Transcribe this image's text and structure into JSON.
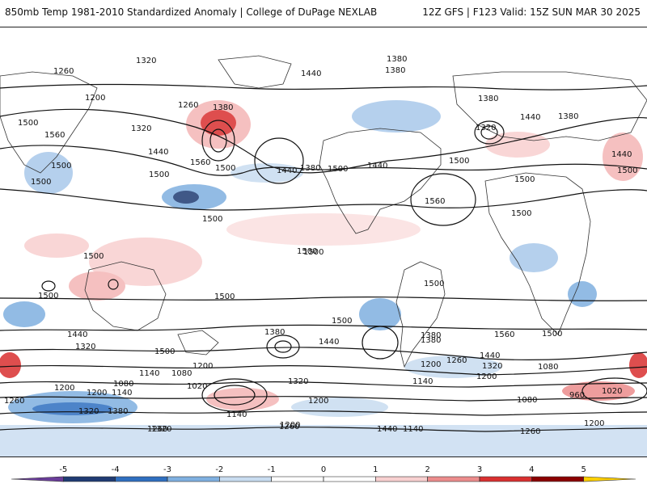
{
  "header": {
    "title": "850mb Temp 1981-2010 Standardized Anomaly | College of DuPage NEXLAB",
    "run_info": "12Z GFS | F123 Valid: 15Z SUN MAR 30 2025"
  },
  "map": {
    "contour_labels": [
      {
        "id": "c1",
        "text": "1320"
      },
      {
        "id": "c2",
        "text": "1380"
      },
      {
        "id": "c3",
        "text": "1260"
      },
      {
        "id": "c4",
        "text": "1200"
      },
      {
        "id": "c5",
        "text": "1440"
      },
      {
        "id": "c6",
        "text": "1380"
      },
      {
        "id": "c7",
        "text": "1260"
      },
      {
        "id": "c8",
        "text": "1380"
      },
      {
        "id": "c9",
        "text": "1500"
      },
      {
        "id": "c10",
        "text": "1320"
      },
      {
        "id": "c11",
        "text": "1560"
      },
      {
        "id": "c12",
        "text": "1440"
      },
      {
        "id": "c13",
        "text": "1500"
      },
      {
        "id": "c14",
        "text": "1560"
      },
      {
        "id": "c15",
        "text": "1500"
      },
      {
        "id": "c16",
        "text": "1440"
      },
      {
        "id": "c17",
        "text": "1380"
      },
      {
        "id": "c18",
        "text": "1500"
      },
      {
        "id": "c19",
        "text": "1440"
      },
      {
        "id": "c20",
        "text": "1500"
      },
      {
        "id": "c21",
        "text": "1560"
      },
      {
        "id": "c22",
        "text": "1380"
      },
      {
        "id": "c23",
        "text": "1320"
      },
      {
        "id": "c24",
        "text": "1440"
      },
      {
        "id": "c25",
        "text": "1380"
      },
      {
        "id": "c26",
        "text": "1440"
      },
      {
        "id": "c27",
        "text": "1500"
      },
      {
        "id": "c28",
        "text": "1500"
      },
      {
        "id": "c29",
        "text": "1500"
      },
      {
        "id": "c30",
        "text": "1500"
      },
      {
        "id": "c31",
        "text": "1500"
      },
      {
        "id": "c32",
        "text": "1500"
      },
      {
        "id": "c33",
        "text": "1500"
      },
      {
        "id": "c34",
        "text": "1500"
      },
      {
        "id": "c35",
        "text": "1500"
      },
      {
        "id": "c36",
        "text": "1500"
      },
      {
        "id": "c37",
        "text": "1560"
      },
      {
        "id": "c38",
        "text": "1500"
      },
      {
        "id": "c39",
        "text": "1440"
      },
      {
        "id": "c40",
        "text": "1320"
      },
      {
        "id": "c41",
        "text": "1500"
      },
      {
        "id": "c42",
        "text": "1380"
      },
      {
        "id": "c43",
        "text": "1440"
      },
      {
        "id": "c44",
        "text": "1380"
      },
      {
        "id": "c45",
        "text": "1260"
      },
      {
        "id": "c46",
        "text": "1440"
      },
      {
        "id": "c47",
        "text": "1320"
      },
      {
        "id": "c48",
        "text": "1200"
      },
      {
        "id": "c49",
        "text": "1080"
      },
      {
        "id": "c50",
        "text": "1140"
      },
      {
        "id": "c51",
        "text": "1080"
      },
      {
        "id": "c52",
        "text": "1200"
      },
      {
        "id": "c53",
        "text": "1020"
      },
      {
        "id": "c54",
        "text": "1320"
      },
      {
        "id": "c55",
        "text": "1140"
      },
      {
        "id": "c56",
        "text": "1200"
      },
      {
        "id": "c57",
        "text": "1140"
      },
      {
        "id": "c58",
        "text": "1200"
      },
      {
        "id": "c59",
        "text": "1080"
      },
      {
        "id": "c60",
        "text": "960"
      },
      {
        "id": "c61",
        "text": "1020"
      },
      {
        "id": "c62",
        "text": "1080"
      },
      {
        "id": "c63",
        "text": "1200"
      },
      {
        "id": "c64",
        "text": "1260"
      },
      {
        "id": "c65",
        "text": "1200"
      },
      {
        "id": "c66",
        "text": "1140"
      },
      {
        "id": "c67",
        "text": "1320"
      },
      {
        "id": "c68",
        "text": "1260"
      },
      {
        "id": "c69",
        "text": "1200"
      },
      {
        "id": "c70",
        "text": "1140"
      },
      {
        "id": "c71",
        "text": "1320"
      },
      {
        "id": "c72",
        "text": "1380"
      },
      {
        "id": "c73",
        "text": "1440"
      },
      {
        "id": "c74",
        "text": "1260"
      },
      {
        "id": "c75",
        "text": "1380"
      },
      {
        "id": "c76",
        "text": "1200"
      },
      {
        "id": "c77",
        "text": "1260"
      },
      {
        "id": "c78",
        "text": "1500"
      },
      {
        "id": "c79",
        "text": "1500"
      },
      {
        "id": "c80",
        "text": "1500"
      }
    ]
  },
  "colorbar": {
    "ticks": [
      "-5",
      "-4",
      "-3",
      "-2",
      "-1",
      "0",
      "1",
      "2",
      "3",
      "4",
      "5"
    ],
    "colors": [
      "#6a3d9a",
      "#1f3b73",
      "#2f6fc0",
      "#7fb0e0",
      "#c8dcf0",
      "#ffffff",
      "#ffffff",
      "#f8d0d0",
      "#ec8c8c",
      "#d93030",
      "#8b0000",
      "#ffd000"
    ]
  }
}
